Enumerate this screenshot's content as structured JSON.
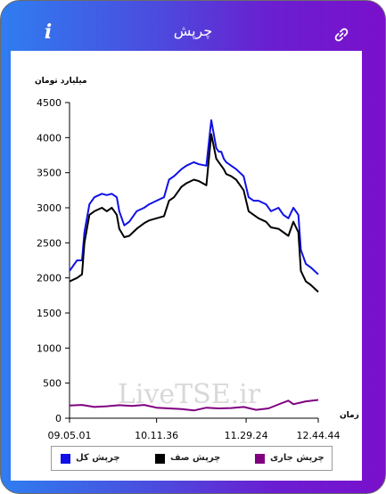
{
  "header": {
    "title": "چرپش",
    "info_icon": "info-icon",
    "info_glyph": "i",
    "link_icon": "link-icon"
  },
  "chart_data": {
    "type": "line",
    "ylabel": "میلیارد تومان",
    "xlabel": "زمان",
    "ylim": [
      0,
      4500
    ],
    "yticks": [
      0,
      500,
      1000,
      1500,
      2000,
      2500,
      3000,
      3500,
      4000,
      4500
    ],
    "xlim": [
      0,
      1
    ],
    "xtick_positions": [
      0.0,
      0.35,
      0.71,
      1.0
    ],
    "xtick_labels": [
      "09.05.01",
      "10.11.36",
      "11.29.24",
      "12.44.44"
    ],
    "watermark": "LiveTSE.ir",
    "grid": false,
    "legend": "bottom",
    "series": [
      {
        "name": "چرپش کل",
        "color": "#1010e8",
        "x": [
          0.0,
          0.03,
          0.05,
          0.06,
          0.08,
          0.1,
          0.13,
          0.15,
          0.17,
          0.19,
          0.2,
          0.22,
          0.24,
          0.27,
          0.3,
          0.32,
          0.35,
          0.38,
          0.4,
          0.42,
          0.45,
          0.47,
          0.5,
          0.52,
          0.55,
          0.57,
          0.59,
          0.6,
          0.61,
          0.62,
          0.63,
          0.65,
          0.67,
          0.7,
          0.72,
          0.74,
          0.76,
          0.79,
          0.81,
          0.84,
          0.86,
          0.88,
          0.9,
          0.92,
          0.93,
          0.95,
          0.97,
          1.0
        ],
        "y": [
          2100,
          2250,
          2250,
          2650,
          3050,
          3150,
          3200,
          3180,
          3200,
          3150,
          2950,
          2750,
          2800,
          2950,
          3000,
          3050,
          3100,
          3150,
          3400,
          3450,
          3550,
          3600,
          3650,
          3620,
          3600,
          4250,
          3850,
          3800,
          3800,
          3700,
          3650,
          3600,
          3550,
          3450,
          3150,
          3100,
          3100,
          3050,
          2950,
          3000,
          2900,
          2850,
          3000,
          2900,
          2400,
          2200,
          2150,
          2050
        ]
      },
      {
        "name": "چرپش صف",
        "color": "#000000",
        "x": [
          0.0,
          0.03,
          0.05,
          0.06,
          0.08,
          0.1,
          0.13,
          0.15,
          0.17,
          0.19,
          0.2,
          0.22,
          0.24,
          0.27,
          0.3,
          0.32,
          0.35,
          0.38,
          0.4,
          0.42,
          0.45,
          0.47,
          0.5,
          0.52,
          0.55,
          0.57,
          0.59,
          0.6,
          0.61,
          0.62,
          0.63,
          0.65,
          0.67,
          0.7,
          0.72,
          0.74,
          0.76,
          0.79,
          0.81,
          0.84,
          0.86,
          0.88,
          0.9,
          0.92,
          0.93,
          0.95,
          0.97,
          1.0
        ],
        "y": [
          1950,
          2000,
          2050,
          2500,
          2900,
          2950,
          3000,
          2950,
          3000,
          2900,
          2700,
          2580,
          2600,
          2700,
          2780,
          2820,
          2850,
          2880,
          3100,
          3150,
          3300,
          3350,
          3400,
          3380,
          3320,
          4050,
          3700,
          3650,
          3600,
          3550,
          3480,
          3450,
          3400,
          3250,
          2950,
          2900,
          2850,
          2800,
          2720,
          2700,
          2650,
          2600,
          2800,
          2650,
          2100,
          1950,
          1900,
          1800
        ]
      },
      {
        "name": "چرپش جاری",
        "color": "#800080",
        "x": [
          0.0,
          0.05,
          0.1,
          0.15,
          0.2,
          0.25,
          0.3,
          0.35,
          0.4,
          0.45,
          0.5,
          0.55,
          0.6,
          0.65,
          0.7,
          0.75,
          0.8,
          0.85,
          0.88,
          0.9,
          0.95,
          1.0
        ],
        "y": [
          180,
          190,
          160,
          170,
          185,
          175,
          190,
          150,
          140,
          130,
          110,
          150,
          140,
          145,
          160,
          120,
          140,
          210,
          250,
          200,
          240,
          260
        ]
      }
    ]
  }
}
